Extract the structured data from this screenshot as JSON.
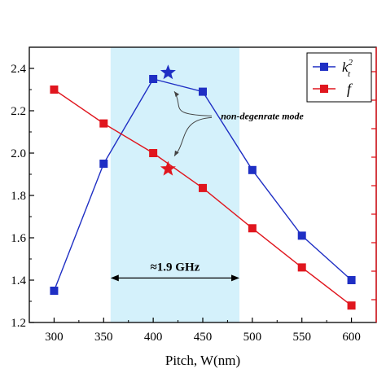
{
  "chart_data": {
    "type": "line",
    "xlabel": "Pitch, W(nm)",
    "xlim": [
      275,
      625
    ],
    "x_ticks": [
      300,
      350,
      400,
      450,
      500,
      550,
      600
    ],
    "ylim": [
      1.2,
      2.5
    ],
    "y_ticks": [
      "1.2",
      "1.4",
      "1.6",
      "1.8",
      "2.0",
      "2.2",
      "2.4"
    ],
    "right_axis_ticks": 9,
    "series": [
      {
        "legend_label": "k_t^2",
        "legend_main": "k",
        "legend_sub": "t",
        "legend_sup": "2",
        "color": "#1f2fc4",
        "marker": "square",
        "axis": "left",
        "x": [
          300,
          350,
          400,
          450,
          500,
          550,
          600
        ],
        "y": [
          1.35,
          1.95,
          2.35,
          2.29,
          1.92,
          1.61,
          1.4
        ]
      },
      {
        "legend_label": "f",
        "color": "#e0161e",
        "marker": "square",
        "axis": "right",
        "x": [
          300,
          350,
          400,
          450,
          500,
          550,
          600
        ],
        "y": [
          2.3,
          2.14,
          2.0,
          1.835,
          1.645,
          1.46,
          1.28
        ]
      }
    ],
    "special_points": [
      {
        "series": "k_t^2",
        "x": 415,
        "y": 2.38,
        "color": "#1f2fc4",
        "marker": "star"
      },
      {
        "series": "f",
        "x": 415,
        "y": 1.925,
        "color": "#e0161e",
        "marker": "star"
      }
    ],
    "highlight_band": {
      "x_range": [
        357,
        487
      ],
      "color": "#d4f1fb"
    },
    "band_annotation": {
      "text": "≈1.9 GHz",
      "x_range": [
        357,
        487
      ],
      "y": 1.41
    },
    "annotation": {
      "text": "non-degenrate mode",
      "x": 510,
      "y": 2.16,
      "arrow_targets": [
        [
          418,
          2.33
        ],
        [
          418,
          1.955
        ]
      ]
    },
    "legend_position": "top-right",
    "grid": false
  }
}
